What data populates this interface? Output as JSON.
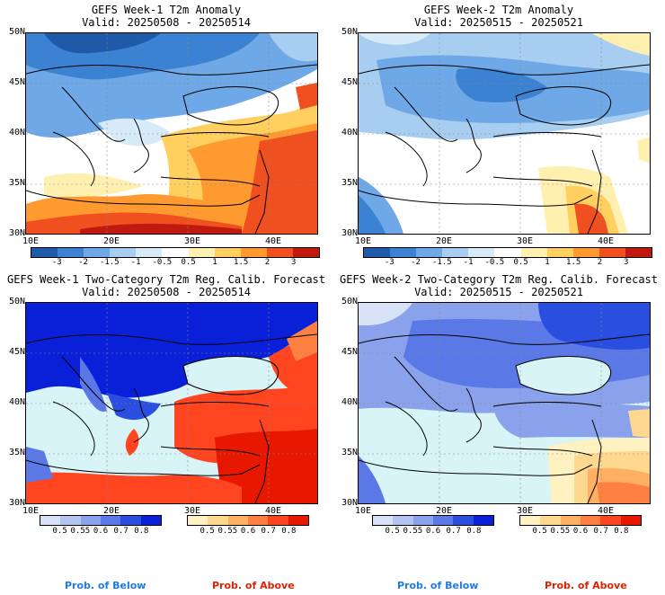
{
  "panels": {
    "p1": {
      "title": "GEFS Week-1 T2m Anomaly",
      "valid": "Valid: 20250508 - 20250514"
    },
    "p2": {
      "title": "GEFS Week-2 T2m Anomaly",
      "valid": "Valid: 20250515 - 20250521"
    },
    "p3": {
      "title": "GEFS Week-1 Two-Category T2m Reg. Calib. Forecast",
      "valid": "Valid: 20250508 - 20250514"
    },
    "p4": {
      "title": "GEFS Week-2 Two-Category T2m Reg. Calib. Forecast",
      "valid": "Valid: 20250515 - 20250521"
    }
  },
  "axes": {
    "lat": [
      "50N",
      "45N",
      "40N",
      "35N",
      "30N"
    ],
    "lon": [
      "10E",
      "20E",
      "30E",
      "40E"
    ]
  },
  "anomaly_colorbar": {
    "labels": [
      "-3",
      "-2",
      "-1.5",
      "-1",
      "-0.5",
      "0.5",
      "1",
      "1.5",
      "2",
      "3"
    ],
    "colors": [
      "#1e5aa8",
      "#3c82d2",
      "#6ea8e6",
      "#a7cdf0",
      "#d6eaf8",
      "#ffffff",
      "#fff0b0",
      "#ffd060",
      "#ff9a30",
      "#f05020",
      "#c01a10"
    ]
  },
  "prob_below_colorbar": {
    "labels": [
      "0.5",
      "0.55",
      "0.6",
      "0.7",
      "0.8"
    ],
    "colors": [
      "#d8e2f6",
      "#b4c4f0",
      "#8aa2ec",
      "#5a78e6",
      "#2a4ee0",
      "#0a20d8"
    ]
  },
  "prob_above_colorbar": {
    "labels": [
      "0.5",
      "0.55",
      "0.6",
      "0.7",
      "0.8"
    ],
    "colors": [
      "#fff2c0",
      "#ffd890",
      "#ffb060",
      "#ff8040",
      "#ff4420",
      "#e81800"
    ]
  },
  "legend": {
    "below": "Prob. of Below",
    "above": "Prob. of Above",
    "below_color": "#1e7ae6",
    "above_color": "#e02000"
  }
}
